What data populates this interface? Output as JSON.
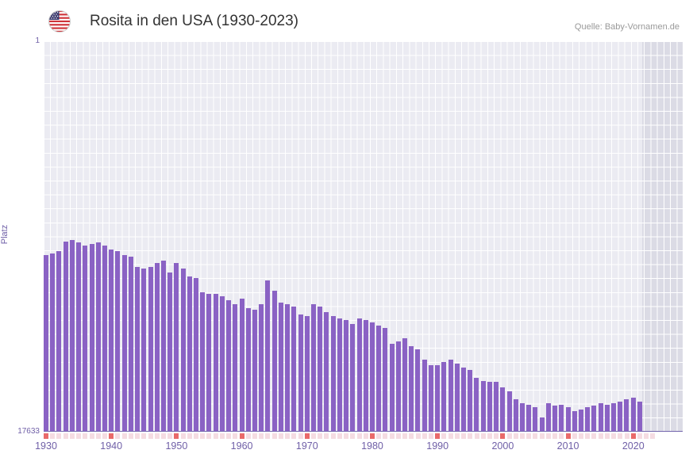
{
  "header": {
    "title": "Rosita in den USA (1930-2023)",
    "source": "Quelle: Baby-Vornamen.de",
    "flag_icon": "us-flag-icon"
  },
  "axes": {
    "y_label": "Platz",
    "y_top_tick": "1",
    "y_bottom_tick": "17633",
    "x_ticks": [
      "1930",
      "1940",
      "1950",
      "1960",
      "1970",
      "1980",
      "1990",
      "2000",
      "2010",
      "2020"
    ],
    "x_min": 1930,
    "x_max": 2023,
    "y_min": 1,
    "y_max": 17633
  },
  "colors": {
    "bar": "#8a62c4",
    "plot_background": "#ebebf2",
    "gridline": "#ffffff",
    "axis_text": "#6f5fa7",
    "title_text": "#333333",
    "source_text": "#999999",
    "decade_tick": "#e96a6a",
    "minor_tick": "#f5dce2",
    "axis_line": "#7466ad",
    "no_data_band": "rgba(110,110,140,0.13)"
  },
  "chart_data": {
    "type": "bar",
    "title": "Rosita in den USA (1930-2023)",
    "xlabel": "",
    "ylabel": "Platz",
    "ylim": [
      17633,
      1
    ],
    "y_inverted": true,
    "legend": "none",
    "grid": true,
    "x": [
      1930,
      1931,
      1932,
      1933,
      1934,
      1935,
      1936,
      1937,
      1938,
      1939,
      1940,
      1941,
      1942,
      1943,
      1944,
      1945,
      1946,
      1947,
      1948,
      1949,
      1950,
      1951,
      1952,
      1953,
      1954,
      1955,
      1956,
      1957,
      1958,
      1959,
      1960,
      1961,
      1962,
      1963,
      1964,
      1965,
      1966,
      1967,
      1968,
      1969,
      1970,
      1971,
      1972,
      1973,
      1974,
      1975,
      1976,
      1977,
      1978,
      1979,
      1980,
      1981,
      1982,
      1983,
      1984,
      1985,
      1986,
      1987,
      1988,
      1989,
      1990,
      1991,
      1992,
      1993,
      1994,
      1995,
      1996,
      1997,
      1998,
      1999,
      2000,
      2001,
      2002,
      2003,
      2004,
      2005,
      2006,
      2007,
      2008,
      2009,
      2010,
      2011,
      2012,
      2013,
      2014,
      2015,
      2016,
      2017,
      2018,
      2019,
      2020,
      2021
    ],
    "series": [
      {
        "name": "Platz",
        "values": [
          9660,
          9590,
          9510,
          9050,
          8980,
          9120,
          9230,
          9160,
          9120,
          9230,
          9410,
          9510,
          9660,
          9760,
          10230,
          10300,
          10230,
          10050,
          9940,
          10480,
          10050,
          10300,
          10660,
          10730,
          11370,
          11440,
          11440,
          11550,
          11730,
          11910,
          11660,
          12090,
          12160,
          11910,
          10840,
          11300,
          11840,
          11910,
          12020,
          12370,
          12450,
          11910,
          12020,
          12270,
          12450,
          12550,
          12620,
          12800,
          12550,
          12620,
          12730,
          12870,
          12980,
          13700,
          13590,
          13450,
          13800,
          13950,
          14410,
          14660,
          14660,
          14520,
          14410,
          14590,
          14770,
          14880,
          15230,
          15380,
          15410,
          15410,
          15660,
          15840,
          16200,
          16380,
          16450,
          16560,
          17020,
          16380,
          16490,
          16450,
          16560,
          16740,
          16660,
          16560,
          16490,
          16380,
          16450,
          16380,
          16310,
          16200,
          16130,
          16310
        ]
      }
    ]
  }
}
